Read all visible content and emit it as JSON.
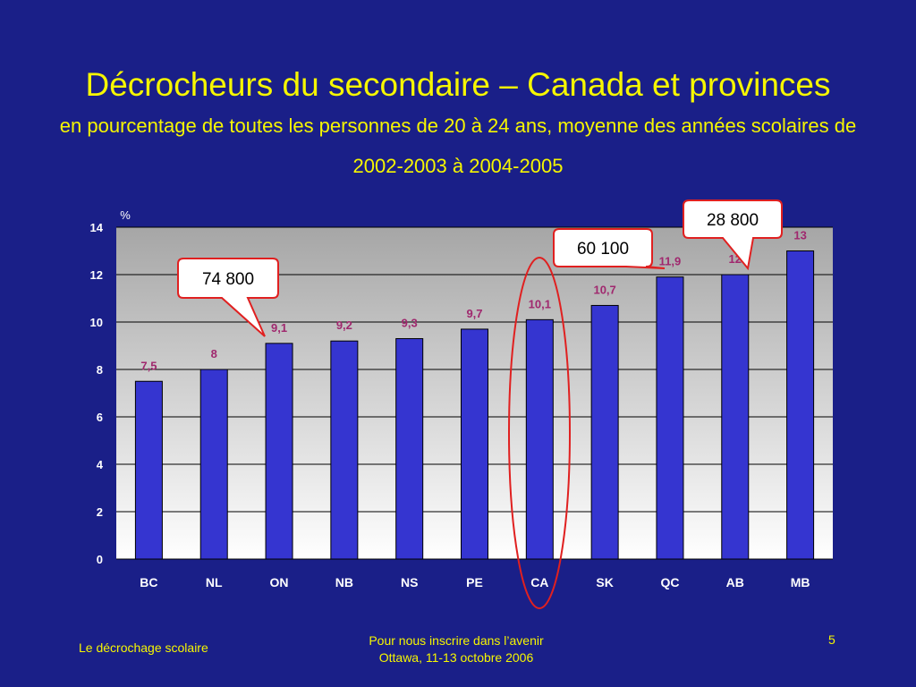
{
  "slide": {
    "title": "Décrocheurs du secondaire – Canada et provinces",
    "subtitle": "en pourcentage de toutes les personnes de 20 à 24 ans, moyenne des années scolaires de 2002-2003 à 2004-2005"
  },
  "chart_data": {
    "type": "bar",
    "categories": [
      "BC",
      "NL",
      "ON",
      "NB",
      "NS",
      "PE",
      "CA",
      "SK",
      "QC",
      "AB",
      "MB"
    ],
    "values": [
      7.5,
      8,
      9.1,
      9.2,
      9.3,
      9.7,
      10.1,
      10.7,
      11.9,
      12,
      13
    ],
    "data_labels": [
      "7,5",
      "8",
      "9,1",
      "9,2",
      "9,3",
      "9,7",
      "10,1",
      "10,7",
      "11,9",
      "12",
      "13"
    ],
    "ylabel": "%",
    "ylim": [
      0,
      14
    ],
    "yticks": [
      0,
      2,
      4,
      6,
      8,
      10,
      12,
      14
    ],
    "grid": true,
    "highlighted_category": "CA",
    "callouts": [
      {
        "text": "74 800",
        "target": "ON"
      },
      {
        "text": "60 100",
        "target": "QC"
      },
      {
        "text": "28 800",
        "target": "AB"
      }
    ],
    "colors": {
      "bar": "#3535d0",
      "data_label": "#a0286e",
      "highlight": "#e02020",
      "axis_text": "#ffffff",
      "plot_top": "#a6a6a6",
      "plot_bottom": "#ffffff"
    }
  },
  "footer": {
    "left": "Le décrochage scolaire",
    "center_line1": "Pour nous inscrire dans l’avenir",
    "center_line2": "Ottawa, 11-13 octobre 2006",
    "page_number": "5"
  }
}
